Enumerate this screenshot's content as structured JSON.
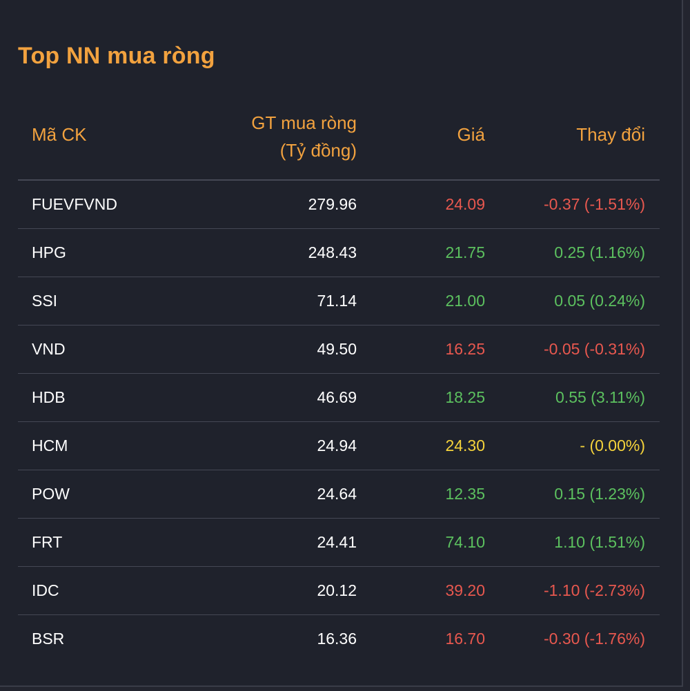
{
  "title": "Top NN mua ròng",
  "colors": {
    "accent": "#f2a23f",
    "up": "#5cc15f",
    "down": "#e8584f",
    "reference": "#f5d33b"
  },
  "headers": {
    "symbol": "Mã CK",
    "net_value_line1": "GT mua ròng",
    "net_value_line2": "(Tỷ đồng)",
    "price": "Giá",
    "change": "Thay đổi"
  },
  "rows": [
    {
      "symbol": "FUEVFVND",
      "value": "279.96",
      "price": "24.09",
      "change": "-0.37 (-1.51%)",
      "trend": "down"
    },
    {
      "symbol": "HPG",
      "value": "248.43",
      "price": "21.75",
      "change": "0.25 (1.16%)",
      "trend": "up"
    },
    {
      "symbol": "SSI",
      "value": "71.14",
      "price": "21.00",
      "change": "0.05 (0.24%)",
      "trend": "up"
    },
    {
      "symbol": "VND",
      "value": "49.50",
      "price": "16.25",
      "change": "-0.05 (-0.31%)",
      "trend": "down"
    },
    {
      "symbol": "HDB",
      "value": "46.69",
      "price": "18.25",
      "change": "0.55 (3.11%)",
      "trend": "up"
    },
    {
      "symbol": "HCM",
      "value": "24.94",
      "price": "24.30",
      "change": "- (0.00%)",
      "trend": "ref"
    },
    {
      "symbol": "POW",
      "value": "24.64",
      "price": "12.35",
      "change": "0.15 (1.23%)",
      "trend": "up"
    },
    {
      "symbol": "FRT",
      "value": "24.41",
      "price": "74.10",
      "change": "1.10 (1.51%)",
      "trend": "up"
    },
    {
      "symbol": "IDC",
      "value": "20.12",
      "price": "39.20",
      "change": "-1.10 (-2.73%)",
      "trend": "down"
    },
    {
      "symbol": "BSR",
      "value": "16.36",
      "price": "16.70",
      "change": "-0.30 (-1.76%)",
      "trend": "down"
    }
  ]
}
